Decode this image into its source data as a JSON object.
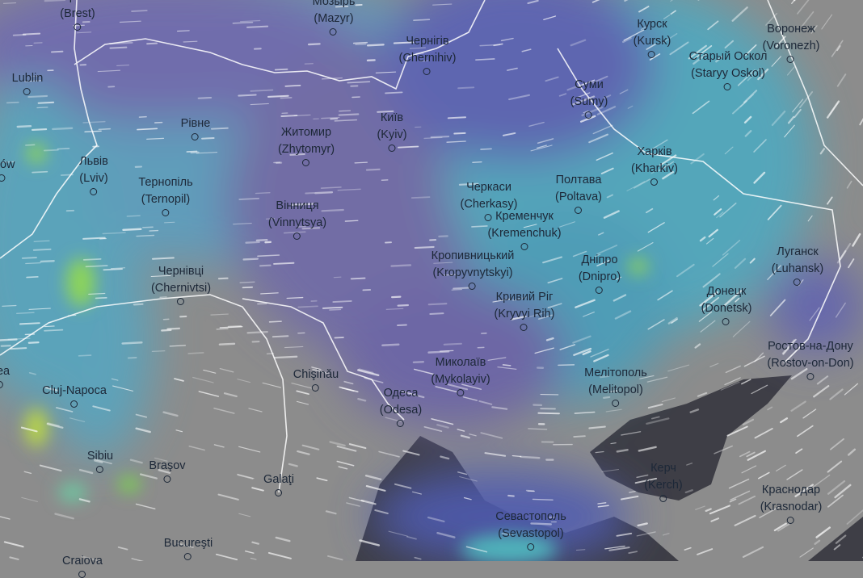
{
  "map": {
    "layer": "precipitation-wind",
    "colors": {
      "land": "#8c8c8c",
      "sea": "#3e3e46",
      "rain_light": "#5b64b8",
      "rain_medium": "#4fb3bb",
      "rain_heavy": "#7ccf52",
      "border": "#ffffff"
    },
    "cities": [
      {
        "name": "Брест",
        "latin": "(Brest)"
      },
      {
        "name": "Мозырь",
        "latin": "(Mazyr)"
      },
      {
        "name": "Чернігів",
        "latin": "(Chernihiv)"
      },
      {
        "name": "Курск",
        "latin": "(Kursk)"
      },
      {
        "name": "Воронеж",
        "latin": "(Voronezh)"
      },
      {
        "name": "Старый Оскол",
        "latin": "(Staryy Oskol)"
      },
      {
        "name": "Lublin",
        "latin": ""
      },
      {
        "name": "Рівне",
        "latin": ""
      },
      {
        "name": "Житомир",
        "latin": "(Zhytomyr)"
      },
      {
        "name": "Київ",
        "latin": "(Kyiv)"
      },
      {
        "name": "Суми",
        "latin": "(Sumy)"
      },
      {
        "name": "Харків",
        "latin": "(Kharkiv)"
      },
      {
        "name": "szów",
        "latin": ""
      },
      {
        "name": "Львів",
        "latin": "(Lviv)"
      },
      {
        "name": "Тернопіль",
        "latin": "(Ternopil)"
      },
      {
        "name": "Вінниця",
        "latin": "(Vinnytsya)"
      },
      {
        "name": "Черкаси",
        "latin": "(Cherkasy)"
      },
      {
        "name": "Полтава",
        "latin": "(Poltava)"
      },
      {
        "name": "Кременчук",
        "latin": "(Kremenchuk)"
      },
      {
        "name": "Кропивницький",
        "latin": "(Kropyvnytskyi)"
      },
      {
        "name": "Дніпро",
        "latin": "(Dnipro)"
      },
      {
        "name": "Луганск",
        "latin": "(Luhansk)"
      },
      {
        "name": "Чернівці",
        "latin": "(Chernivtsi)"
      },
      {
        "name": "Кривий Ріг",
        "latin": "(Kryvyi Rih)"
      },
      {
        "name": "Донецк",
        "latin": "(Donetsk)"
      },
      {
        "name": "Ростов-на-Дону",
        "latin": "(Rostov-on-Don)"
      },
      {
        "name": "dea",
        "latin": ""
      },
      {
        "name": "Chişinău",
        "latin": ""
      },
      {
        "name": "Миколаїв",
        "latin": "(Mykolayiv)"
      },
      {
        "name": "Мелітополь",
        "latin": "(Melitopol)"
      },
      {
        "name": "Cluj-Napoca",
        "latin": ""
      },
      {
        "name": "Одеса",
        "latin": "(Odesa)"
      },
      {
        "name": "Sibiu",
        "latin": ""
      },
      {
        "name": "Braşov",
        "latin": ""
      },
      {
        "name": "Galaţi",
        "latin": ""
      },
      {
        "name": "Керч",
        "latin": "(Kerch)"
      },
      {
        "name": "Краснодар",
        "latin": "(Krasnodar)"
      },
      {
        "name": "Севастополь",
        "latin": "(Sevastopol)"
      },
      {
        "name": "Bucureşti",
        "latin": ""
      },
      {
        "name": "Craiova",
        "latin": ""
      }
    ]
  }
}
